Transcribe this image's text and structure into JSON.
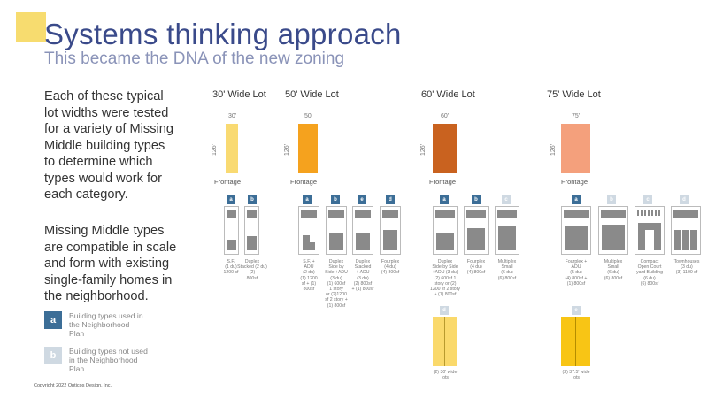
{
  "header": {
    "title": "Systems thinking approach",
    "subtitle": "This became the DNA of the new zoning"
  },
  "intro": {
    "paragraph1": "Each of these typical\nlot widths were tested\nfor a variety of Missing\nMiddle building types\nto determine which\ntypes would work for\neach category.",
    "paragraph2": "Missing Middle types\nare compatible in scale\nand form with existing\nsingle-family homes in\nthe neighborhood."
  },
  "legend": {
    "used": {
      "letter": "a",
      "label": "Building types used in\nthe Neighborhood\nPlan",
      "color": "#3c6e97"
    },
    "unused": {
      "letter": "b",
      "label": "Building types not used\nin the Neighborhood\nPlan",
      "color": "#cfd9e2"
    }
  },
  "copyright": "Copyright 2022 Opticos Design, Inc.",
  "colors": {
    "lot30": "#f9da72",
    "lot50": "#f5a21e",
    "lot60": "#c9621f",
    "lot75": "#f4a07c",
    "lot30x2": "#fad96b",
    "lot37x2": "#f8c515"
  },
  "lots": [
    {
      "title": "30' Wide Lot",
      "width_label": "30'",
      "depth_label": "126'",
      "frontage_label": "Frontage",
      "types": [
        {
          "badge": "a",
          "caption": "S.F.\n(1 du)\n1200 sf"
        },
        {
          "badge": "b",
          "caption": "Duplex\nStacked (2 du)\n(2)\n800sf"
        }
      ]
    },
    {
      "title": "50' Wide Lot",
      "width_label": "50'",
      "depth_label": "126'",
      "frontage_label": "Frontage",
      "types": [
        {
          "badge": "a",
          "caption": "S.F. +\nADU\n(2 du)\n(1) 1200\nsf + (1)\n800sf"
        },
        {
          "badge": "b",
          "caption": "Duplex\nSide by\nSide +ADU\n(3 du)\n(1) 600sf\n1 story\nor (2)1200\nsf 2 story +\n(1) 800sf"
        },
        {
          "badge": "e",
          "caption": "Duplex\nStacked\n+ ADU\n(3 du)\n(2) 800sf\n+ (1) 800sf"
        },
        {
          "badge": "d",
          "caption": "Fourplex\n(4 du)\n(4) 800sf"
        }
      ]
    },
    {
      "title": "60' Wide Lot",
      "width_label": "60'",
      "depth_label": "126'",
      "frontage_label": "Frontage",
      "types": [
        {
          "badge": "a",
          "caption": "Duplex\nSide by Side\n+ADU (3 du)\n(2) 600sf 1\nstory or (2)\n1200 sf 2 story\n+ (1) 800sf"
        },
        {
          "badge": "b",
          "caption": "Fourplex\n(4 du)\n(4) 800sf"
        },
        {
          "badge": "c",
          "caption": "Multiplex\nSmall\n(6 du)\n(6) 800sf"
        }
      ],
      "extra": {
        "badge": "d",
        "caption": "(2) 30' wide\nlots"
      }
    },
    {
      "title": "75' Wide Lot",
      "width_label": "75'",
      "depth_label": "126'",
      "frontage_label": "Frontage",
      "types": [
        {
          "badge": "a",
          "caption": "Fourplex +\nADU\n(5 du)\n(4) 800sf +\n(1) 800sf"
        },
        {
          "badge": "b",
          "caption": "Multiplex\nSmall\n(6 du)\n(6) 800sf"
        },
        {
          "badge": "c",
          "caption": "Compact\nOpen Court\nyard Building\n(6 du)\n(6) 800sf"
        },
        {
          "badge": "d",
          "caption": "Townhouses\n(3 du)\n(3) 1100 sf"
        }
      ],
      "extra": {
        "badge": "e",
        "caption": "(2) 37.5' wide\nlots"
      }
    }
  ]
}
